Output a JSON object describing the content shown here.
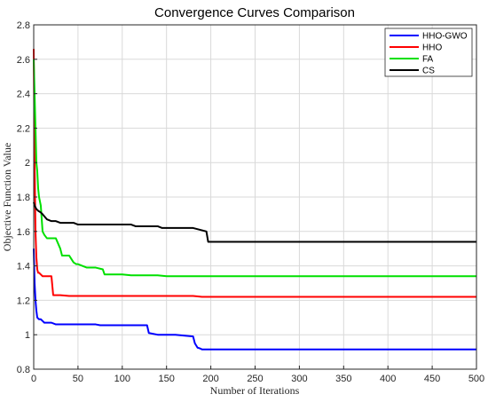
{
  "chart_data": {
    "type": "line",
    "title": "Convergence Curves Comparison",
    "xlabel": "Number of Iterations",
    "ylabel": "Objective Function Value",
    "xlim": [
      0,
      500
    ],
    "ylim": [
      0.8,
      2.8
    ],
    "xticks": [
      "0",
      "50",
      "100",
      "150",
      "200",
      "250",
      "300",
      "350",
      "400",
      "450",
      "500"
    ],
    "yticks": [
      "0.8",
      "1",
      "1.2",
      "1.4",
      "1.6",
      "1.8",
      "2",
      "2.2",
      "2.4",
      "2.6",
      "2.8"
    ],
    "grid": true,
    "legend_position": "top-right",
    "series": [
      {
        "name": "HHO-GWO",
        "color": "#0000ff",
        "x": [
          0,
          1,
          2,
          3,
          4,
          6,
          8,
          10,
          12,
          20,
          25,
          30,
          70,
          75,
          128,
          130,
          140,
          150,
          160,
          180,
          182,
          185,
          188,
          190,
          500
        ],
        "y": [
          1.5,
          1.3,
          1.2,
          1.14,
          1.1,
          1.09,
          1.09,
          1.08,
          1.07,
          1.07,
          1.06,
          1.06,
          1.06,
          1.055,
          1.055,
          1.01,
          1.0,
          1.0,
          1.0,
          0.99,
          0.95,
          0.925,
          0.92,
          0.915,
          0.915
        ]
      },
      {
        "name": "HHO",
        "color": "#ff0000",
        "x": [
          0,
          1,
          2,
          3,
          4,
          5,
          6,
          8,
          10,
          20,
          22,
          25,
          30,
          40,
          180,
          190,
          200,
          500
        ],
        "y": [
          2.66,
          2.0,
          1.6,
          1.45,
          1.38,
          1.36,
          1.36,
          1.35,
          1.34,
          1.34,
          1.23,
          1.23,
          1.23,
          1.225,
          1.225,
          1.22,
          1.22,
          1.22
        ]
      },
      {
        "name": "FA",
        "color": "#00e000",
        "x": [
          0,
          1,
          2,
          3,
          4,
          5,
          6,
          8,
          10,
          12,
          15,
          25,
          30,
          32,
          40,
          45,
          48,
          50,
          60,
          65,
          70,
          78,
          80,
          100,
          110,
          140,
          150,
          500
        ],
        "y": [
          2.6,
          2.4,
          2.2,
          2.0,
          1.95,
          1.85,
          1.8,
          1.75,
          1.6,
          1.58,
          1.56,
          1.56,
          1.5,
          1.46,
          1.46,
          1.42,
          1.41,
          1.41,
          1.39,
          1.39,
          1.39,
          1.38,
          1.35,
          1.35,
          1.345,
          1.345,
          1.34,
          1.34
        ]
      },
      {
        "name": "CS",
        "color": "#000000",
        "x": [
          0,
          1,
          2,
          3,
          5,
          8,
          10,
          15,
          20,
          25,
          30,
          45,
          50,
          110,
          115,
          140,
          145,
          180,
          195,
          197,
          500
        ],
        "y": [
          1.77,
          1.75,
          1.74,
          1.73,
          1.72,
          1.71,
          1.7,
          1.67,
          1.66,
          1.66,
          1.65,
          1.65,
          1.64,
          1.64,
          1.63,
          1.63,
          1.62,
          1.62,
          1.6,
          1.54,
          1.54
        ]
      }
    ]
  }
}
